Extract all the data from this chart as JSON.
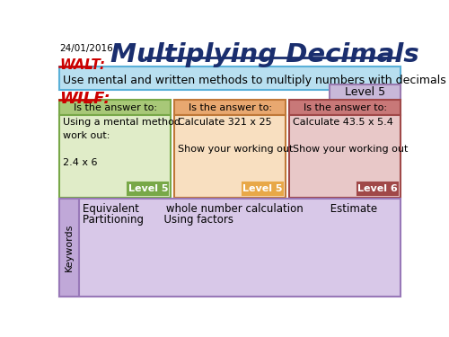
{
  "date": "24/01/2016",
  "title": "Multiplying Decimals",
  "walt_label": "WALT:",
  "walt_text": "Use mental and written methods to multiply numbers with decimals",
  "wilf_label": "WILF:",
  "level5_box": "Level 5",
  "col1_header": "Is the answer to:",
  "col1_body": "Using a mental method\nwork out:\n\n2.4 x 6",
  "col1_level": "Level 5",
  "col2_header": "Is the answer to:",
  "col2_body": "Calculate 321 x 25\n\nShow your working out",
  "col2_level": "Level 5",
  "col3_header": "Is the answer to:",
  "col3_body": "Calculate 43.5 x 5.4\n\nShow your working out",
  "col3_level": "Level 6",
  "keywords_label": "Keywords",
  "keywords_line1": "Equivalent        whole number calculation        Estimate",
  "keywords_line2": "Partitioning      Using factors",
  "bg_color": "#ffffff",
  "title_color": "#1a2e6e",
  "walt_color": "#cc0000",
  "wilf_color": "#cc0000",
  "walt_bg": "#b8dff0",
  "walt_border": "#5ab0d8",
  "level5_top_bg": "#c8b8d8",
  "level5_top_border": "#9a7ab0",
  "col1_header_bg": "#a8c878",
  "col1_header_border": "#78a848",
  "col1_body_bg": "#e0ecc8",
  "col1_body_border": "#78a848",
  "col1_level_bg": "#78a848",
  "col2_header_bg": "#e8a870",
  "col2_header_border": "#c07838",
  "col2_body_bg": "#f8dfc0",
  "col2_body_border": "#c07838",
  "col2_level_bg": "#e8a848",
  "col3_header_bg": "#c87878",
  "col3_header_border": "#a04848",
  "col3_body_bg": "#e8c8c8",
  "col3_body_border": "#a04848",
  "col3_level_bg": "#a04848",
  "keywords_bg": "#d8c8e8",
  "keywords_border": "#9878b8",
  "keywords_label_bg": "#c0a8d8",
  "keywords_label_border": "#9878b8"
}
